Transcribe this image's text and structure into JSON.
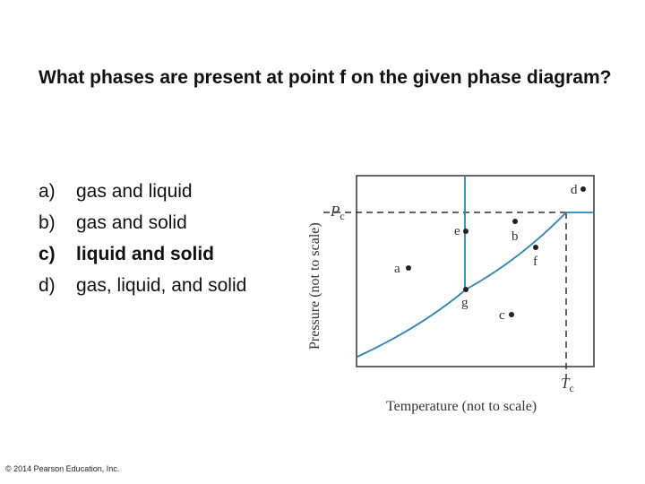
{
  "question": "What phases are present at point f on the given phase diagram?",
  "options": [
    {
      "letter": "a)",
      "text": "gas and liquid",
      "bold": false
    },
    {
      "letter": "b)",
      "text": "gas and solid",
      "bold": false
    },
    {
      "letter": "c)",
      "text": "liquid and solid",
      "bold": true
    },
    {
      "letter": "d)",
      "text": "gas, liquid, and solid",
      "bold": false
    }
  ],
  "diagram": {
    "x_axis_label": "Temperature (not to scale)",
    "y_axis_label": "Pressure (not to scale)",
    "pc_label": "P",
    "pc_sub": "c",
    "tc_label": "T",
    "tc_sub": "c",
    "points": [
      "a",
      "b",
      "c",
      "d",
      "e",
      "f",
      "g"
    ],
    "line_color": "#2a86b8",
    "dash_color": "#333333"
  },
  "copyright": "© 2014 Pearson Education, Inc."
}
